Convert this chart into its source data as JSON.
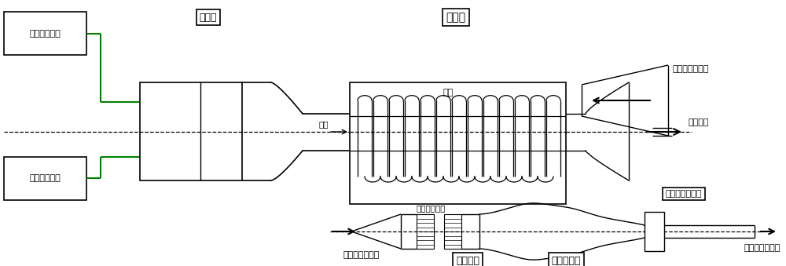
{
  "bg_color": "#ffffff",
  "lc": "#000000",
  "gc": "#008000",
  "figsize": [
    10.0,
    3.39
  ],
  "dpi": 100,
  "labels": {
    "air_supply": "空气供应系统",
    "alcohol_supply": "酒精供应系统",
    "heater": "加热器",
    "heat_exchanger": "换热器",
    "coil": "盘管",
    "grid": "格栅（两级）",
    "pure_gas_cold": "纯净气体（冷）",
    "exhaust": "燃气废气",
    "fuel_gas": "燃气",
    "pure_gas_hot_bottom": "纯净气体（热）",
    "pure_gas_hot_right": "纯净气体（热）",
    "flow_device": "均流装置",
    "supersonic_nozzle": "超声速喷管",
    "mach_device": "马赫数校准装置"
  }
}
